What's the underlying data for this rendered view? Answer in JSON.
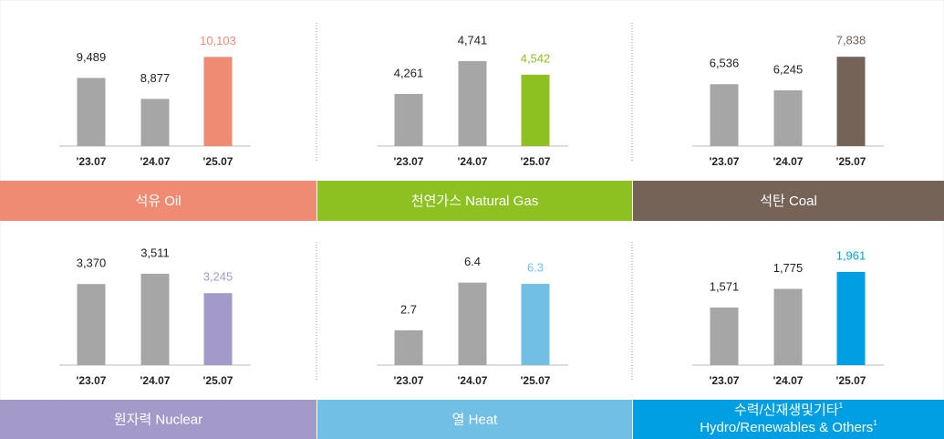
{
  "chart_data": [
    {
      "type": "bar",
      "title": "석유 Oil",
      "categories": [
        "'23.07",
        "'24.07",
        "'25.07"
      ],
      "values": [
        9489,
        8877,
        10103
      ],
      "value_labels": [
        "9,489",
        "8,877",
        "10,103"
      ],
      "colors": [
        "#a6a6a6",
        "#a6a6a6",
        "#ef8a73"
      ],
      "ylim": [
        7500,
        10700
      ]
    },
    {
      "type": "bar",
      "title": "천연가스 Natural Gas",
      "categories": [
        "'23.07",
        "'24.07",
        "'25.07"
      ],
      "values": [
        4261,
        4741,
        4542
      ],
      "value_labels": [
        "4,261",
        "4,741",
        "4,542"
      ],
      "colors": [
        "#a6a6a6",
        "#a6a6a6",
        "#8dc021"
      ],
      "ylim": [
        3500,
        5100
      ]
    },
    {
      "type": "bar",
      "title": "석탄 Coal",
      "categories": [
        "'23.07",
        "'24.07",
        "'25.07"
      ],
      "values": [
        6536,
        6245,
        7838
      ],
      "value_labels": [
        "6,536",
        "6,245",
        "7,838"
      ],
      "colors": [
        "#a6a6a6",
        "#a6a6a6",
        "#766358"
      ],
      "ylim": [
        3600,
        8800
      ]
    },
    {
      "type": "bar",
      "title": "원자력 Nuclear",
      "categories": [
        "'23.07",
        "'24.07",
        "'25.07"
      ],
      "values": [
        3370,
        3511,
        3245
      ],
      "value_labels": [
        "3,370",
        "3,511",
        "3,245"
      ],
      "colors": [
        "#a6a6a6",
        "#a6a6a6",
        "#a39ac9"
      ],
      "ylim": [
        2260,
        3760
      ]
    },
    {
      "type": "bar",
      "title": "열 Heat",
      "categories": [
        "'23.07",
        "'24.07",
        "'25.07"
      ],
      "values": [
        2.7,
        6.4,
        6.3
      ],
      "colors": [
        "#a6a6a6",
        "#a6a6a6",
        "#72bfe6"
      ],
      "ylim": [
        0,
        8.5
      ]
    },
    {
      "type": "bar",
      "title": "수력/신재생및기타",
      "subtitle": "Hydro/Renewables & Others",
      "title_note": "1",
      "categories": [
        "'23.07",
        "'24.07",
        "'25.07"
      ],
      "values": [
        1571,
        1775,
        1961
      ],
      "value_labels": [
        "1,571",
        "1,775",
        "1,961"
      ],
      "colors": [
        "#a6a6a6",
        "#a6a6a6",
        "#009fe3"
      ],
      "ylim": [
        940,
        2140
      ]
    }
  ]
}
